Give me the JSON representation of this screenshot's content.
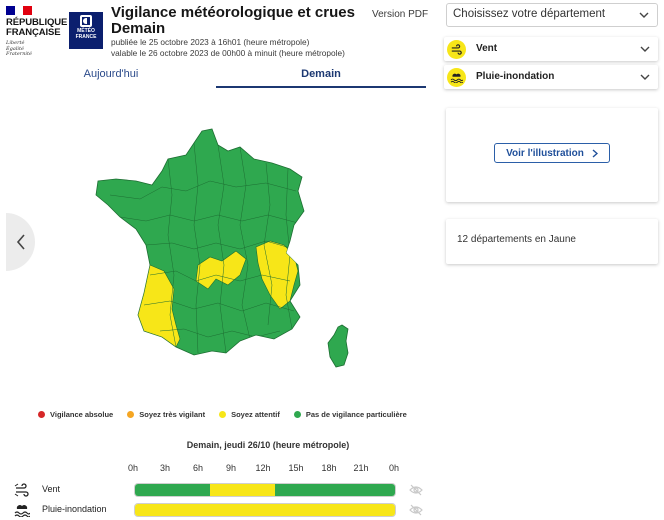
{
  "header": {
    "rf_name_line1": "RÉPUBLIQUE",
    "rf_name_line2": "FRANÇAISE",
    "rf_motto": [
      "Liberté",
      "Égalité",
      "Fraternité"
    ],
    "mf_line1": "MÉTÉO",
    "mf_line2": "FRANCE",
    "title_line1": "Vigilance météorologique et crues",
    "title_line2": "Demain",
    "published": "publiée le 25 octobre 2023 à 16h01 (heure métropole)",
    "valid": "valable le 26 octobre 2023 de 00h00 à minuit (heure métropole)",
    "version_pdf": "Version PDF"
  },
  "tabs": [
    {
      "label": "Aujourd'hui",
      "active": false
    },
    {
      "label": "Demain",
      "active": true
    }
  ],
  "legend": [
    {
      "label": "Vigilance absolue",
      "color": "#d62728"
    },
    {
      "label": "Soyez très vigilant",
      "color": "#f5a623"
    },
    {
      "label": "Soyez attentif",
      "color": "#f7e618"
    },
    {
      "label": "Pas de vigilance particulière",
      "color": "#2fa84f"
    }
  ],
  "timeline": {
    "title": "Demain, jeudi 26/10 (heure métropole)",
    "hours": [
      "0h",
      "3h",
      "6h",
      "9h",
      "12h",
      "15h",
      "18h",
      "21h",
      "0h"
    ],
    "rows": [
      {
        "label": "Vent",
        "icon": "wind-icon",
        "segments": [
          {
            "from": 0,
            "to": 0.29,
            "color": "#2fa84f"
          },
          {
            "from": 0.29,
            "to": 0.54,
            "color": "#f7e618"
          },
          {
            "from": 0.54,
            "to": 1,
            "color": "#2fa84f"
          }
        ]
      },
      {
        "label": "Pluie-inondation",
        "icon": "rain-flood-icon",
        "segments": [
          {
            "from": 0,
            "to": 1,
            "color": "#f7e618"
          }
        ]
      }
    ]
  },
  "sidebar": {
    "dept_select_placeholder": "Choisissez votre département",
    "phenomena": [
      {
        "label": "Vent",
        "icon": "wind-icon",
        "color": "#f7e618"
      },
      {
        "label": "Pluie-inondation",
        "icon": "rain-flood-icon",
        "color": "#f7e618"
      }
    ],
    "illustration_button": "Voir l'illustration",
    "summary": "12 départements en Jaune"
  },
  "colors": {
    "green": "#2fa84f",
    "yellow": "#f7e618",
    "accent": "#1c3872"
  }
}
